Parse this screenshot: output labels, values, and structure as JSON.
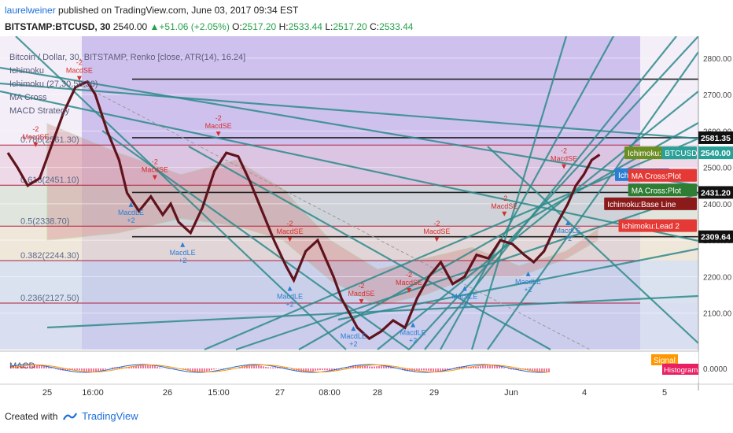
{
  "header": {
    "user": "laurelweiner",
    "published": "published on TradingView.com, June 03, 2017 09:34 EST"
  },
  "quote": {
    "symbol": "BITSTAMP:BTCUSD, 30",
    "last": "2540.00",
    "change": "+51.06 (+2.05%)",
    "o_label": "O:",
    "o": "2517.20",
    "h_label": "H:",
    "h": "2533.44",
    "l_label": "L:",
    "l": "2517.20",
    "c_label": "C:",
    "c": "2533.44"
  },
  "legend": [
    "Bitcoin / Dollar, 30, BITSTAMP, Renko [close, ATR(14), 16.24]",
    "Ichimoku",
    "Ichimoku (27,30,58,30)",
    "MA Cross",
    "MACD Strategy"
  ],
  "footer": {
    "created_with": "Created with",
    "brand": "TradingView"
  },
  "colors": {
    "up": "#26a14a",
    "brand": "#1e6fd9",
    "fib_line": "#b0203a",
    "trend": "#2e8b8b"
  },
  "chart_data": {
    "type": "renko",
    "price_axis": {
      "min": 2000,
      "max": 2860,
      "ticks": [
        2100,
        2200,
        2300,
        2400,
        2500,
        2600,
        2700,
        2800
      ]
    },
    "time_axis": {
      "ticks": [
        "25",
        "16:00",
        "26",
        "15:00",
        "27",
        "08:00",
        "28",
        "29",
        "Jun",
        "4",
        "5"
      ]
    },
    "price_path": [
      [
        0.0,
        2540
      ],
      [
        0.12,
        2500
      ],
      [
        0.25,
        2450
      ],
      [
        0.4,
        2470
      ],
      [
        0.55,
        2560
      ],
      [
        0.7,
        2650
      ],
      [
        0.85,
        2720
      ],
      [
        1.0,
        2735
      ],
      [
        1.1,
        2700
      ],
      [
        1.25,
        2600
      ],
      [
        1.4,
        2520
      ],
      [
        1.5,
        2430
      ],
      [
        1.65,
        2380
      ],
      [
        1.8,
        2420
      ],
      [
        1.95,
        2370
      ],
      [
        2.05,
        2400
      ],
      [
        2.15,
        2350
      ],
      [
        2.3,
        2320
      ],
      [
        2.45,
        2390
      ],
      [
        2.6,
        2490
      ],
      [
        2.75,
        2540
      ],
      [
        2.9,
        2530
      ],
      [
        3.05,
        2460
      ],
      [
        3.2,
        2380
      ],
      [
        3.35,
        2300
      ],
      [
        3.5,
        2230
      ],
      [
        3.6,
        2190
      ],
      [
        3.75,
        2270
      ],
      [
        3.9,
        2300
      ],
      [
        4.0,
        2250
      ],
      [
        4.1,
        2200
      ],
      [
        4.2,
        2140
      ],
      [
        4.3,
        2100
      ],
      [
        4.4,
        2060
      ],
      [
        4.55,
        2030
      ],
      [
        4.7,
        2050
      ],
      [
        4.85,
        2080
      ],
      [
        5.0,
        2060
      ],
      [
        5.15,
        2140
      ],
      [
        5.3,
        2200
      ],
      [
        5.45,
        2240
      ],
      [
        5.6,
        2180
      ],
      [
        5.75,
        2200
      ],
      [
        5.9,
        2260
      ],
      [
        6.05,
        2250
      ],
      [
        6.2,
        2300
      ],
      [
        6.35,
        2290
      ],
      [
        6.5,
        2260
      ],
      [
        6.62,
        2240
      ],
      [
        6.75,
        2270
      ],
      [
        6.9,
        2340
      ],
      [
        7.05,
        2400
      ],
      [
        7.15,
        2450
      ],
      [
        7.25,
        2480
      ],
      [
        7.35,
        2520
      ],
      [
        7.45,
        2535
      ]
    ],
    "fibonacci": [
      {
        "label": "0.786(2561.30)",
        "value": 2561.3
      },
      {
        "label": "0.618(2451.10)",
        "value": 2451.1
      },
      {
        "label": "0.5(2338.70)",
        "value": 2338.7
      },
      {
        "label": "0.382(2244.30)",
        "value": 2244.3
      },
      {
        "label": "0.236(2127.50)",
        "value": 2127.5
      }
    ],
    "horizontal_levels": [
      2581.35,
      2431.2,
      2309.64,
      2742
    ],
    "price_labels": [
      {
        "text": "2581.35",
        "value": 2581.35,
        "bg": "#111111",
        "fg": "#ffffff"
      },
      {
        "text": "2540.00",
        "value": 2540.0,
        "bg": "#2aa198",
        "fg": "#ffffff"
      },
      {
        "text": "2431.20",
        "value": 2431.2,
        "bg": "#111111",
        "fg": "#ffffff"
      },
      {
        "text": "2309.64",
        "value": 2309.64,
        "bg": "#111111",
        "fg": "#ffffff"
      }
    ],
    "overlay_labels": [
      {
        "text": "Ichimoku:Lag",
        "value": 2540,
        "bg": "#6b8e23",
        "fg": "#ffffff"
      },
      {
        "text": "BTCUSD",
        "value": 2540,
        "bg": "#2aa198",
        "fg": "#ffffff"
      },
      {
        "text": "Ichimoku:C",
        "value": 2480,
        "bg": "#2a7fd4",
        "fg": "#ffffff"
      },
      {
        "text": "MA Cross:Plot",
        "value": 2478,
        "bg": "#e53935",
        "fg": "#ffffff"
      },
      {
        "text": "MA Cross:Plot",
        "value": 2438,
        "bg": "#2e7d32",
        "fg": "#ffffff"
      },
      {
        "text": "Ichimoku:Base Line",
        "value": 2400,
        "bg": "#8b1a1a",
        "fg": "#ffffff"
      },
      {
        "text": "Ichimoku:Lead 2",
        "value": 2340,
        "bg": "#e53935",
        "fg": "#ffffff"
      }
    ],
    "signals": [
      {
        "text": "MacdSE",
        "sub": "-2",
        "t": 0.9,
        "p": 2742,
        "dir": "down"
      },
      {
        "text": "MacdSE",
        "sub": "-2",
        "t": 0.35,
        "p": 2560,
        "dir": "down"
      },
      {
        "text": "MacdLE",
        "sub": "+2",
        "t": 1.55,
        "p": 2400,
        "dir": "up"
      },
      {
        "text": "MacdSE",
        "sub": "-2",
        "t": 1.85,
        "p": 2470,
        "dir": "down"
      },
      {
        "text": "MacdLE",
        "sub": "+2",
        "t": 2.2,
        "p": 2290,
        "dir": "up"
      },
      {
        "text": "MacdSE",
        "sub": "-2",
        "t": 2.65,
        "p": 2590,
        "dir": "down"
      },
      {
        "text": "MacdSE",
        "sub": "-2",
        "t": 3.55,
        "p": 2300,
        "dir": "down"
      },
      {
        "text": "MacdLE",
        "sub": "+2",
        "t": 3.55,
        "p": 2170,
        "dir": "up"
      },
      {
        "text": "MacdSE",
        "sub": "-2",
        "t": 4.45,
        "p": 2130,
        "dir": "down"
      },
      {
        "text": "MacdLE",
        "sub": "+2",
        "t": 4.35,
        "p": 2060,
        "dir": "up"
      },
      {
        "text": "MacdSE",
        "sub": "-2",
        "t": 5.05,
        "p": 2160,
        "dir": "down"
      },
      {
        "text": "MacdLE",
        "sub": "+2",
        "t": 5.1,
        "p": 2070,
        "dir": "up"
      },
      {
        "text": "MacdSE",
        "sub": "-2",
        "t": 5.4,
        "p": 2300,
        "dir": "down"
      },
      {
        "text": "MacdLE",
        "sub": "+2",
        "t": 5.75,
        "p": 2170,
        "dir": "up"
      },
      {
        "text": "MacdSE",
        "sub": "-2",
        "t": 6.25,
        "p": 2370,
        "dir": "down"
      },
      {
        "text": "MacdLE",
        "sub": "+2",
        "t": 6.55,
        "p": 2210,
        "dir": "up"
      },
      {
        "text": "MacdSE",
        "sub": "-2",
        "t": 7.0,
        "p": 2500,
        "dir": "down"
      },
      {
        "text": "MacdLE",
        "sub": "+2",
        "t": 7.05,
        "p": 2350,
        "dir": "up"
      }
    ],
    "macd": {
      "label": "MACD",
      "axis_value": "0.0000",
      "signal_label": "Signal",
      "histogram_label": "Histogram"
    }
  }
}
